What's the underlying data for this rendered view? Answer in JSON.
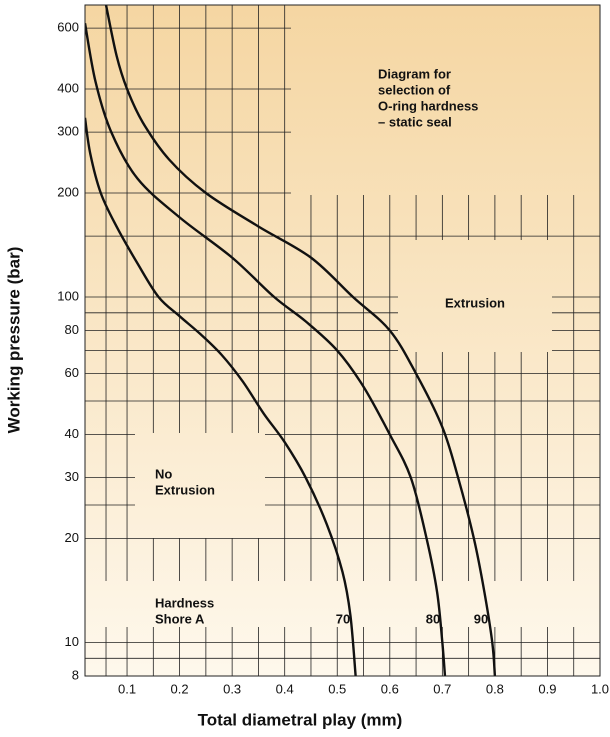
{
  "chart_data": {
    "type": "line",
    "x_label": "Total diametral play (mm)",
    "y_label": "Working pressure (bar)",
    "log_y": true,
    "grid": true,
    "xlim": [
      0.02,
      1.0
    ],
    "ylim": [
      8,
      700
    ],
    "xticks": [
      0.1,
      0.2,
      0.3,
      0.4,
      0.5,
      0.6,
      0.7,
      0.8,
      0.9,
      {
        "value": 1.0,
        "label": "1.0"
      }
    ],
    "yticks": [
      8,
      10,
      20,
      30,
      40,
      60,
      80,
      100,
      200,
      300,
      400,
      600
    ],
    "ygrid_minor": [
      9,
      15,
      25,
      50,
      70,
      90,
      150
    ],
    "annotations": [
      {
        "lines": [
          "Diagram for",
          "selection of",
          "O-ring hardness",
          "– static seal"
        ]
      },
      {
        "lines": [
          "Extrusion"
        ]
      },
      {
        "lines": [
          "No",
          "Extrusion"
        ]
      },
      {
        "lines": [
          "Hardness",
          "Shore A"
        ]
      }
    ],
    "series": [
      {
        "name": "70",
        "color": "#111111",
        "x": [
          0.02,
          0.03,
          0.05,
          0.08,
          0.12,
          0.16,
          0.2,
          0.24,
          0.28,
          0.32,
          0.36,
          0.4,
          0.44,
          0.48,
          0.51,
          0.525,
          0.535
        ],
        "values": [
          330,
          260,
          200,
          160,
          125,
          100,
          88,
          78,
          68,
          57,
          46,
          38,
          30,
          22,
          16,
          12,
          8
        ]
      },
      {
        "name": "80",
        "color": "#111111",
        "x": [
          0.02,
          0.04,
          0.07,
          0.12,
          0.2,
          0.3,
          0.38,
          0.44,
          0.5,
          0.55,
          0.6,
          0.64,
          0.67,
          0.69,
          0.7,
          0.705
        ],
        "values": [
          620,
          420,
          300,
          220,
          170,
          130,
          100,
          85,
          70,
          55,
          40,
          30,
          20,
          14,
          10,
          8
        ]
      },
      {
        "name": "90",
        "color": "#111111",
        "x": [
          0.06,
          0.08,
          0.1,
          0.13,
          0.18,
          0.25,
          0.35,
          0.45,
          0.53,
          0.6,
          0.65,
          0.7,
          0.73,
          0.76,
          0.78,
          0.795,
          0.8
        ],
        "values": [
          700,
          500,
          400,
          320,
          250,
          200,
          160,
          130,
          100,
          80,
          60,
          42,
          30,
          20,
          14,
          10,
          8
        ]
      }
    ]
  }
}
